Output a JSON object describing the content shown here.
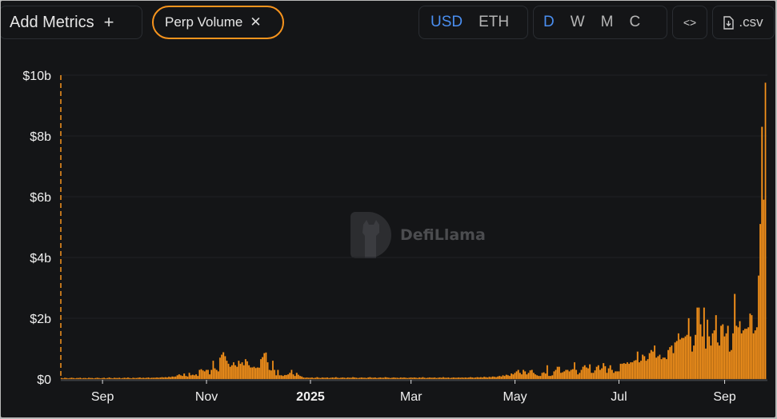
{
  "toolbar": {
    "add_metrics_label": "Add Metrics",
    "add_icon": "plus-icon",
    "metric_pill_label": "Perp Volume",
    "remove_icon": "close-icon",
    "currency_options": [
      "USD",
      "ETH"
    ],
    "currency_selected": "USD",
    "period_options": [
      "D",
      "W",
      "M",
      "C"
    ],
    "period_selected": "D",
    "embed_label": "<>",
    "csv_label": ".csv",
    "csv_icon": "file-download-icon"
  },
  "watermark": {
    "text": "DefiLlama"
  },
  "colors": {
    "accent": "#4a8ef0",
    "bar": "#f7941d",
    "pill_border": "#f7941d",
    "background": "#141517"
  },
  "chart_data": {
    "type": "bar",
    "title": "",
    "xlabel": "",
    "ylabel": "",
    "series": [
      {
        "name": "Perp Volume",
        "unit": "USD billions",
        "interval": "daily"
      }
    ],
    "x_range": [
      "2024-08-08",
      "2025-09-25"
    ],
    "ylim": [
      0,
      10
    ],
    "y_ticks": [
      {
        "value": 0,
        "label": "$0"
      },
      {
        "value": 2,
        "label": "$2b"
      },
      {
        "value": 4,
        "label": "$4b"
      },
      {
        "value": 6,
        "label": "$6b"
      },
      {
        "value": 8,
        "label": "$8b"
      },
      {
        "value": 10,
        "label": "$10b"
      }
    ],
    "x_ticks": [
      {
        "date": "2024-09-01",
        "label": "Sep"
      },
      {
        "date": "2024-11-01",
        "label": "Nov"
      },
      {
        "date": "2025-01-01",
        "label": "2025",
        "bold": true
      },
      {
        "date": "2025-03-01",
        "label": "Mar"
      },
      {
        "date": "2025-05-01",
        "label": "May"
      },
      {
        "date": "2025-07-01",
        "label": "Jul"
      },
      {
        "date": "2025-09-01",
        "label": "Sep"
      }
    ],
    "grid": true,
    "values": [
      0.03,
      0.02,
      0.04,
      0.03,
      0.02,
      0.03,
      0.04,
      0.03,
      0.02,
      0.03,
      0.03,
      0.04,
      0.02,
      0.03,
      0.03,
      0.02,
      0.04,
      0.03,
      0.03,
      0.02,
      0.03,
      0.04,
      0.03,
      0.02,
      0.03,
      0.04,
      0.02,
      0.03,
      0.05,
      0.03,
      0.02,
      0.04,
      0.03,
      0.03,
      0.04,
      0.02,
      0.03,
      0.04,
      0.03,
      0.05,
      0.03,
      0.02,
      0.04,
      0.03,
      0.03,
      0.04,
      0.05,
      0.03,
      0.04,
      0.03,
      0.04,
      0.05,
      0.03,
      0.04,
      0.04,
      0.04,
      0.05,
      0.04,
      0.05,
      0.06,
      0.05,
      0.06,
      0.05,
      0.07,
      0.06,
      0.08,
      0.07,
      0.08,
      0.12,
      0.15,
      0.12,
      0.1,
      0.18,
      0.1,
      0.08,
      0.2,
      0.12,
      0.14,
      0.12,
      0.15,
      0.1,
      0.3,
      0.32,
      0.28,
      0.25,
      0.3,
      0.3,
      0.15,
      0.3,
      0.6,
      0.35,
      0.3,
      0.25,
      0.7,
      0.8,
      0.88,
      0.75,
      0.6,
      0.5,
      0.4,
      0.45,
      0.55,
      0.45,
      0.4,
      0.6,
      0.5,
      0.55,
      0.45,
      0.65,
      0.58,
      0.45,
      0.38,
      0.38,
      0.4,
      0.36,
      0.38,
      0.37,
      0.65,
      0.72,
      0.85,
      0.87,
      0.55,
      0.3,
      0.28,
      0.6,
      0.3,
      0.12,
      0.3,
      0.12,
      0.12,
      0.1,
      0.13,
      0.13,
      0.15,
      0.2,
      0.3,
      0.15,
      0.1,
      0.2,
      0.14,
      0.1,
      0.08,
      0.05,
      0.04,
      0.05,
      0.04,
      0.04,
      0.05,
      0.03,
      0.04,
      0.06,
      0.04,
      0.03,
      0.05,
      0.04,
      0.04,
      0.05,
      0.03,
      0.04,
      0.05,
      0.04,
      0.06,
      0.04,
      0.03,
      0.04,
      0.05,
      0.04,
      0.03,
      0.05,
      0.04,
      0.04,
      0.06,
      0.05,
      0.04,
      0.03,
      0.04,
      0.05,
      0.04,
      0.04,
      0.03,
      0.05,
      0.06,
      0.04,
      0.04,
      0.05,
      0.03,
      0.04,
      0.05,
      0.04,
      0.04,
      0.06,
      0.05,
      0.04,
      0.03,
      0.04,
      0.05,
      0.04,
      0.04,
      0.03,
      0.05,
      0.04,
      0.05,
      0.04,
      0.03,
      0.04,
      0.05,
      0.04,
      0.05,
      0.04,
      0.03,
      0.05,
      0.04,
      0.06,
      0.04,
      0.03,
      0.04,
      0.05,
      0.04,
      0.04,
      0.05,
      0.03,
      0.04,
      0.05,
      0.04,
      0.06,
      0.04,
      0.04,
      0.05,
      0.03,
      0.04,
      0.05,
      0.04,
      0.04,
      0.05,
      0.04,
      0.05,
      0.04,
      0.05,
      0.04,
      0.05,
      0.06,
      0.05,
      0.04,
      0.05,
      0.06,
      0.05,
      0.06,
      0.05,
      0.07,
      0.06,
      0.05,
      0.07,
      0.06,
      0.08,
      0.07,
      0.06,
      0.08,
      0.1,
      0.08,
      0.12,
      0.1,
      0.14,
      0.12,
      0.1,
      0.18,
      0.15,
      0.2,
      0.25,
      0.3,
      0.2,
      0.15,
      0.3,
      0.25,
      0.15,
      0.2,
      0.28,
      0.3,
      0.2,
      0.15,
      0.12,
      0.1,
      0.1,
      0.2,
      0.22,
      0.18,
      0.45,
      0.1,
      0.1,
      0.12,
      0.25,
      0.3,
      0.4,
      0.4,
      0.2,
      0.22,
      0.25,
      0.3,
      0.3,
      0.25,
      0.3,
      0.32,
      0.55,
      0.3,
      0.15,
      0.2,
      0.3,
      0.4,
      0.45,
      0.38,
      0.35,
      0.48,
      0.2,
      0.2,
      0.28,
      0.4,
      0.45,
      0.3,
      0.35,
      0.52,
      0.42,
      0.2,
      0.35,
      0.45,
      0.3,
      0.2,
      0.25,
      0.25,
      0.25,
      0.5,
      0.5,
      0.52,
      0.5,
      0.55,
      0.5,
      0.55,
      0.55,
      0.6,
      0.62,
      0.9,
      0.55,
      0.6,
      0.8,
      0.75,
      0.6,
      0.65,
      0.85,
      0.95,
      0.9,
      1.1,
      0.7,
      0.75,
      0.8,
      0.65,
      0.7,
      0.7,
      0.65,
      0.95,
      1.05,
      1.1,
      0.85,
      1.2,
      1.25,
      1.5,
      1.3,
      1.35,
      1.35,
      1.4,
      1.45,
      2.0,
      1.4,
      0.9,
      1.1,
      1.45,
      2.35,
      2.35,
      1.8,
      1.4,
      2.35,
      1.0,
      1.95,
      1.4,
      1.1,
      1.5,
      1.6,
      2.1,
      1.2,
      1.1,
      1.75,
      1.8,
      1.4,
      1.5,
      1.75,
      0.9,
      0.95,
      1.5,
      2.8,
      1.75,
      1.7,
      1.9,
      1.5,
      1.6,
      1.65,
      1.65,
      1.7,
      2.15,
      2.1,
      1.5,
      1.6,
      1.7,
      3.4,
      5.1,
      8.3,
      5.9,
      9.75
    ]
  }
}
